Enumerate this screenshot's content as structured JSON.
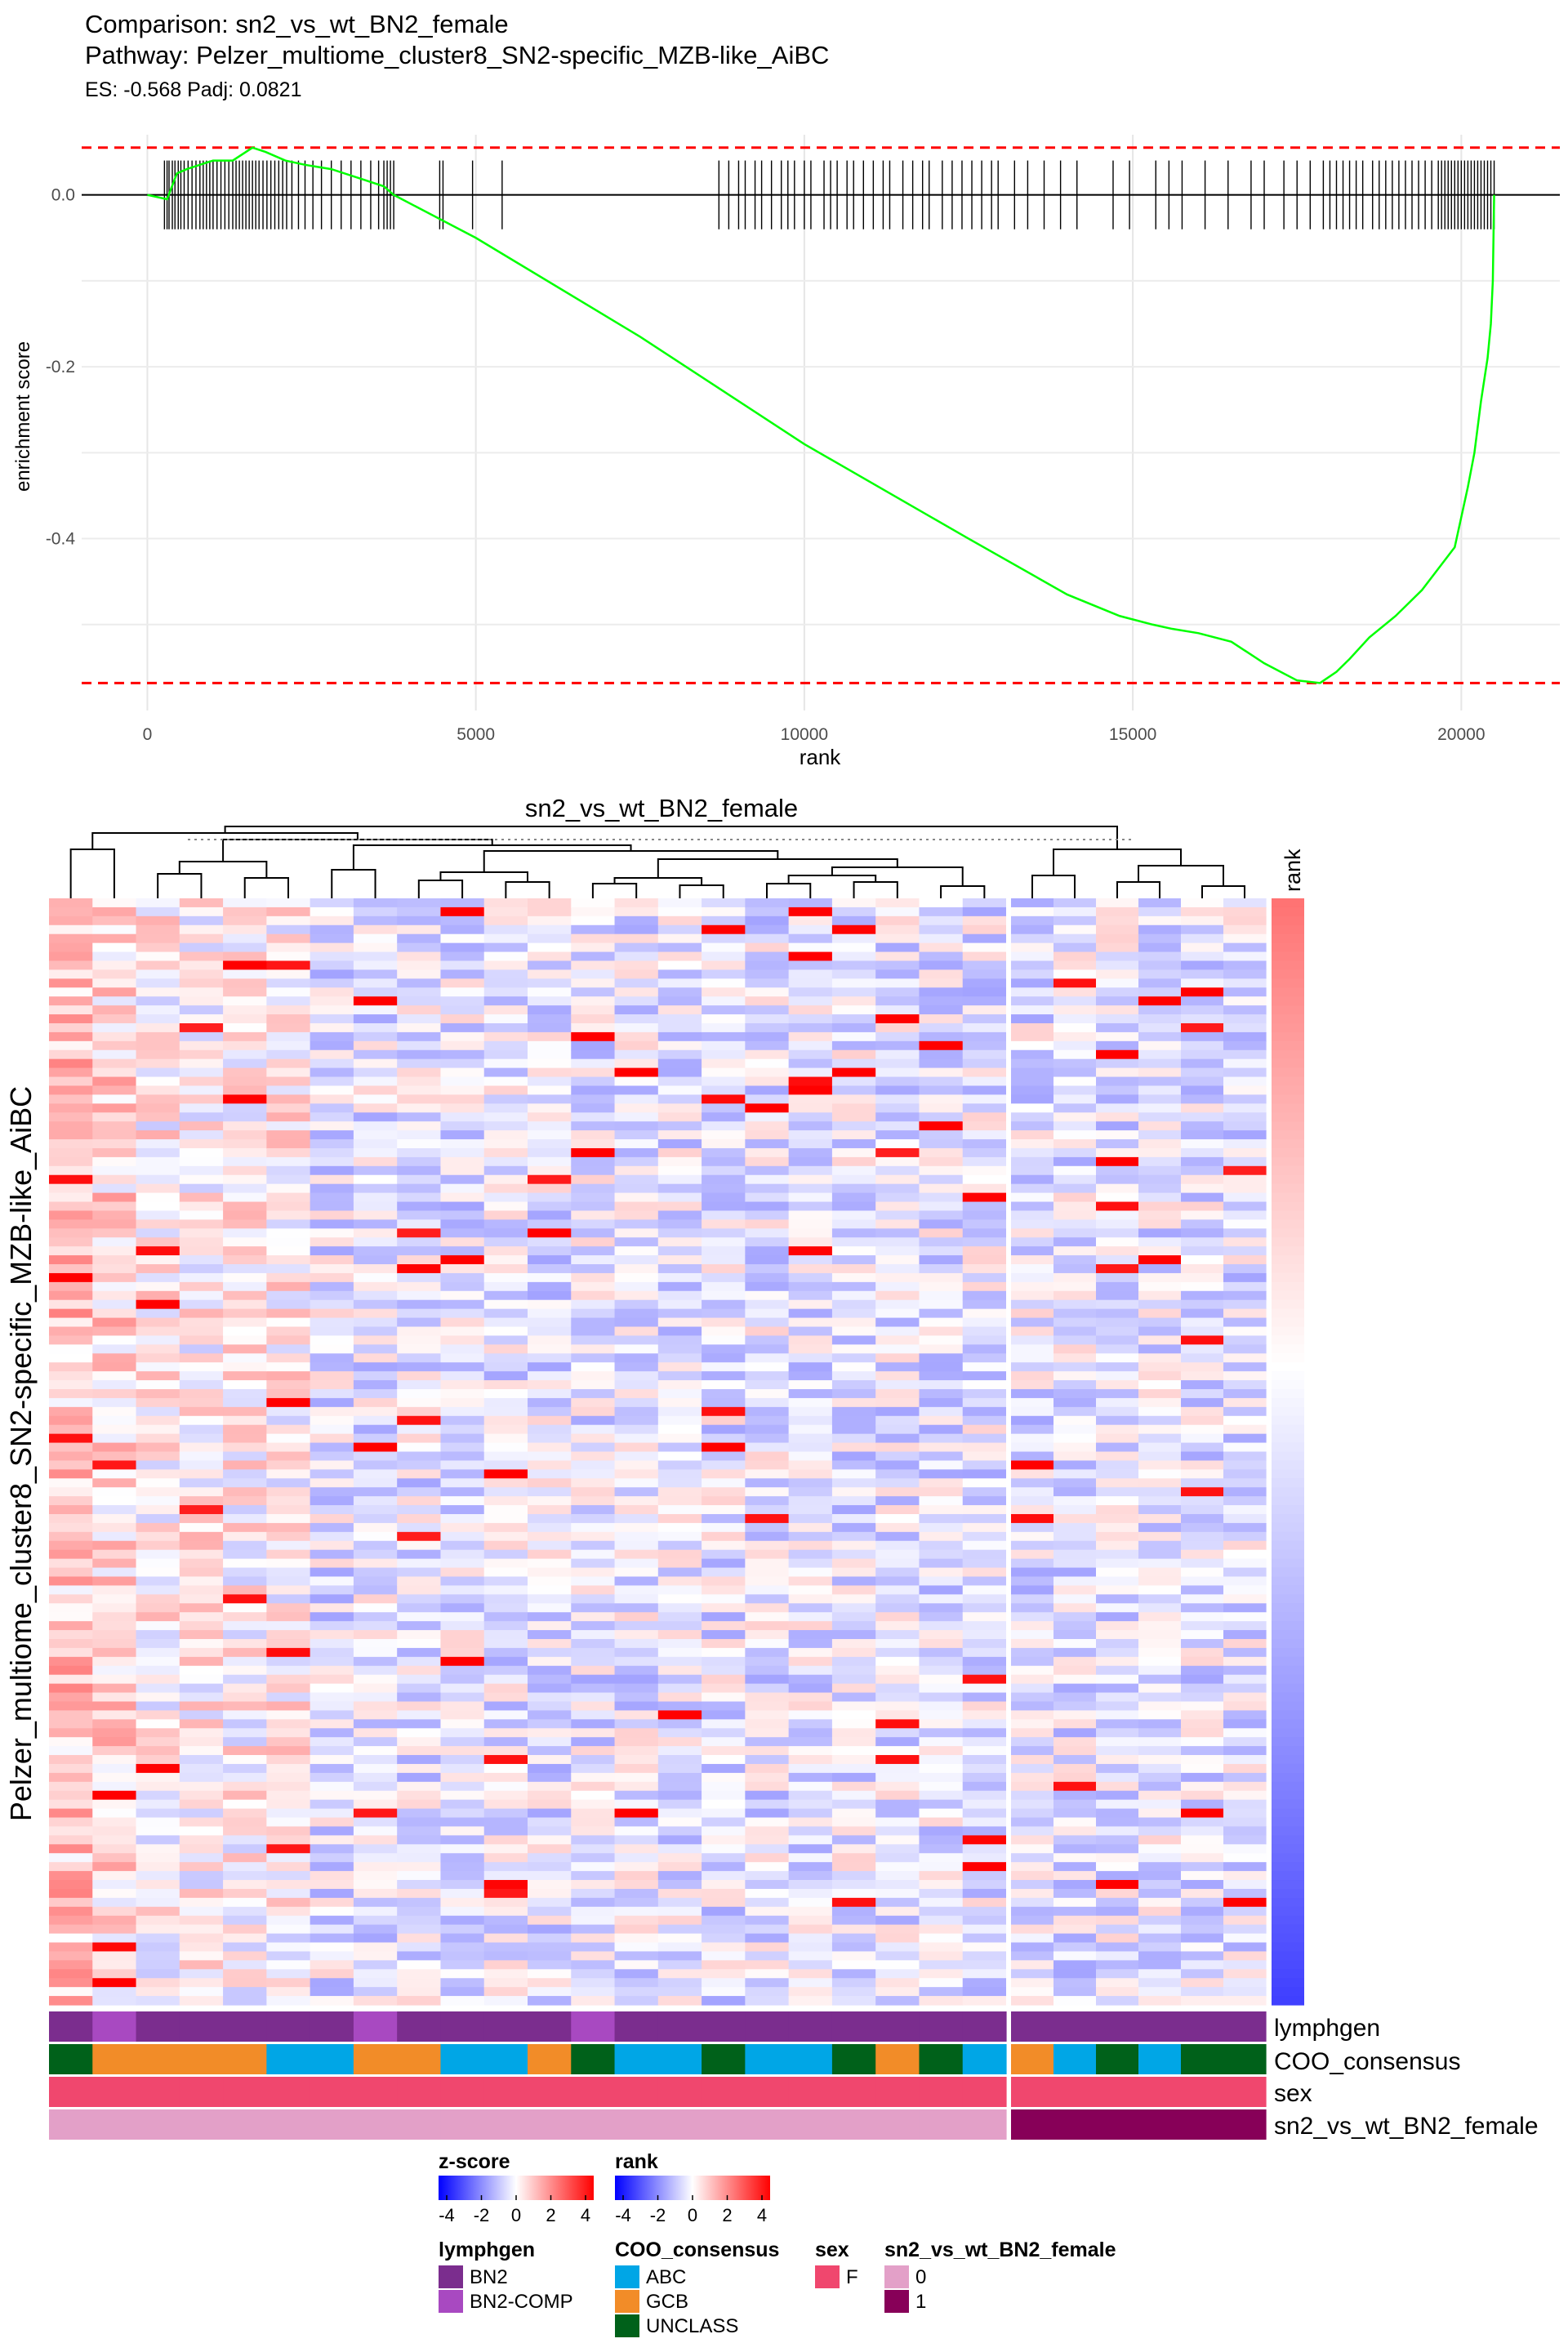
{
  "gsea": {
    "title_line1": "Comparison: sn2_vs_wt_BN2_female",
    "title_line2": "Pathway: Pelzer_multiome_cluster8_SN2-specific_MZB-like_AiBC",
    "subtitle": "ES: -0.568 Padj: 0.0821"
  },
  "heatmap": {
    "title": "sn2_vs_wt_BN2_female",
    "row_title": "Pelzer_multiome_cluster8_SN2-specific_MZB-like_AiBC",
    "rank_bar_label": "rank",
    "annotation_labels": [
      "lymphgen",
      "COO_consensus",
      "sex",
      "sn2_vs_wt_BN2_female"
    ]
  },
  "legends": {
    "zscore": {
      "title": "z-score",
      "ticks": [
        "-4",
        "-2",
        "0",
        "2",
        "4"
      ]
    },
    "rank": {
      "title": "rank",
      "ticks": [
        "-4",
        "-2",
        "0",
        "2",
        "4"
      ]
    },
    "lymphgen": {
      "title": "lymphgen",
      "items": [
        {
          "label": "BN2",
          "color": "#7B2D8E"
        },
        {
          "label": "BN2-COMP",
          "color": "#A849C1"
        }
      ]
    },
    "coo": {
      "title": "COO_consensus",
      "items": [
        {
          "label": "ABC",
          "color": "#00A6E6"
        },
        {
          "label": "GCB",
          "color": "#F28C28"
        },
        {
          "label": "UNCLASS",
          "color": "#00611A"
        }
      ]
    },
    "sex": {
      "title": "sex",
      "items": [
        {
          "label": "F",
          "color": "#F0476E"
        }
      ]
    },
    "group": {
      "title": "sn2_vs_wt_BN2_female",
      "items": [
        {
          "label": "0",
          "color": "#E3A0C8"
        },
        {
          "label": "1",
          "color": "#870058"
        }
      ]
    }
  },
  "chart_data": [
    {
      "type": "line",
      "title": "Comparison: sn2_vs_wt_BN2_female",
      "subtitle": "ES: -0.568 Padj: 0.0821",
      "xlabel": "rank",
      "ylabel": "enrichment score",
      "xlim": [
        -1000,
        21500
      ],
      "ylim": [
        -0.6,
        0.07
      ],
      "x_ticks": [
        0,
        5000,
        10000,
        15000,
        20000
      ],
      "y_ticks": [
        0.0,
        -0.2,
        -0.4
      ],
      "y_tick_labels": [
        "0.0",
        "-0.2",
        "-0.4"
      ],
      "es_bounds": [
        0.055,
        -0.568
      ],
      "line_color": "#00FF00",
      "bound_color": "#FF0000",
      "series": [
        {
          "x": [
            0,
            300,
            450,
            600,
            800,
            1000,
            1300,
            1600,
            1800,
            2100,
            2400,
            2800,
            3200,
            3600,
            3750,
            5000,
            7500,
            10000,
            12500,
            14000,
            14800,
            15300,
            15600,
            16000,
            16500,
            17000,
            17500,
            17850,
            18100,
            18300,
            18600,
            19000,
            19400,
            19700,
            19900,
            20100,
            20200,
            20300,
            20400,
            20450,
            20480,
            20500
          ],
          "y": [
            0.0,
            -0.005,
            0.025,
            0.03,
            0.035,
            0.04,
            0.04,
            0.055,
            0.05,
            0.04,
            0.035,
            0.03,
            0.02,
            0.01,
            0.0,
            -0.05,
            -0.165,
            -0.29,
            -0.4,
            -0.465,
            -0.49,
            -0.5,
            -0.505,
            -0.51,
            -0.52,
            -0.545,
            -0.565,
            -0.568,
            -0.555,
            -0.54,
            -0.515,
            -0.49,
            -0.46,
            -0.43,
            -0.41,
            -0.34,
            -0.3,
            -0.24,
            -0.19,
            -0.15,
            -0.1,
            0.0
          ]
        }
      ],
      "hits": [
        260,
        300,
        330,
        380,
        420,
        470,
        510,
        560,
        620,
        680,
        740,
        800,
        850,
        900,
        950,
        1000,
        1060,
        1120,
        1180,
        1240,
        1300,
        1350,
        1400,
        1450,
        1500,
        1550,
        1600,
        1650,
        1700,
        1760,
        1820,
        1880,
        1940,
        2000,
        2060,
        2120,
        2200,
        2300,
        2400,
        2520,
        2650,
        2800,
        2950,
        3100,
        3250,
        3400,
        3520,
        3600,
        3650,
        3700,
        3750,
        4450,
        4500,
        4950,
        5400,
        8700,
        8850,
        9000,
        9100,
        9250,
        9350,
        9500,
        9650,
        9750,
        9850,
        10000,
        10100,
        10300,
        10400,
        10500,
        10650,
        10750,
        10900,
        11050,
        11200,
        11300,
        11500,
        11650,
        11800,
        11900,
        12100,
        12250,
        12400,
        12550,
        12700,
        12850,
        12950,
        13200,
        13400,
        13650,
        13900,
        14150,
        14700,
        14950,
        15350,
        15550,
        15750,
        16100,
        16450,
        16800,
        17000,
        17300,
        17500,
        17700,
        17900,
        18000,
        18100,
        18200,
        18300,
        18400,
        18500,
        18650,
        18750,
        18850,
        18950,
        19050,
        19150,
        19250,
        19350,
        19450,
        19550,
        19650,
        19700,
        19750,
        19800,
        19850,
        19900,
        19950,
        20000,
        20050,
        20100,
        20150,
        20200,
        20250,
        20300,
        20350,
        20400,
        20450,
        20500
      ]
    },
    {
      "type": "heatmap",
      "title": "sn2_vs_wt_BN2_female",
      "row_title": "Pelzer_multiome_cluster8_SN2-specific_MZB-like_AiBC",
      "n_rows": 124,
      "n_cols_group0": 22,
      "n_cols_group1": 6,
      "color_scale": {
        "low": "#0000FF",
        "mid": "#FFFFFF",
        "high": "#FF0000",
        "range": [
          -4,
          4
        ]
      },
      "column_annotations": {
        "lymphgen": [
          "BN2",
          "BN2-COMP",
          "BN2",
          "BN2",
          "BN2",
          "BN2",
          "BN2",
          "BN2-COMP",
          "BN2",
          "BN2",
          "BN2",
          "BN2",
          "BN2-COMP",
          "BN2",
          "BN2",
          "BN2",
          "BN2",
          "BN2",
          "BN2",
          "BN2",
          "BN2",
          "BN2",
          "BN2",
          "BN2",
          "BN2",
          "BN2",
          "BN2",
          "BN2"
        ],
        "COO_consensus": [
          "UNCLASS",
          "GCB",
          "GCB",
          "GCB",
          "GCB",
          "ABC",
          "ABC",
          "GCB",
          "GCB",
          "ABC",
          "ABC",
          "GCB",
          "UNCLASS",
          "ABC",
          "ABC",
          "UNCLASS",
          "ABC",
          "ABC",
          "UNCLASS",
          "GCB",
          "UNCLASS",
          "ABC",
          "GCB",
          "ABC",
          "UNCLASS",
          "ABC",
          "UNCLASS",
          "UNCLASS"
        ],
        "sex": [
          "F",
          "F",
          "F",
          "F",
          "F",
          "F",
          "F",
          "F",
          "F",
          "F",
          "F",
          "F",
          "F",
          "F",
          "F",
          "F",
          "F",
          "F",
          "F",
          "F",
          "F",
          "F",
          "F",
          "F",
          "F",
          "F",
          "F",
          "F"
        ],
        "sn2_vs_wt_BN2_female": [
          "0",
          "0",
          "0",
          "0",
          "0",
          "0",
          "0",
          "0",
          "0",
          "0",
          "0",
          "0",
          "0",
          "0",
          "0",
          "0",
          "0",
          "0",
          "0",
          "0",
          "0",
          "0",
          "1",
          "1",
          "1",
          "1",
          "1",
          "1"
        ]
      }
    }
  ]
}
